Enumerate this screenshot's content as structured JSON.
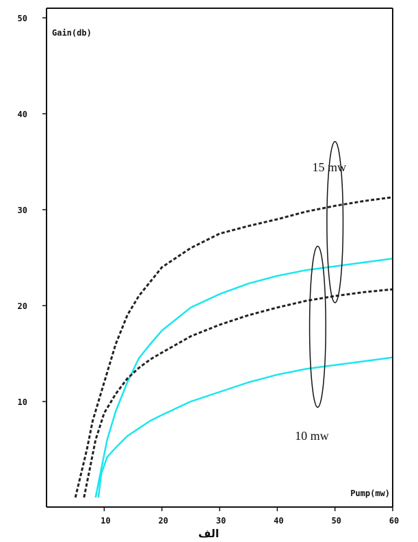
{
  "chart_data": {
    "type": "line",
    "ylabel": "Gain(db)",
    "xlabel": "Pump(mw)",
    "caption": "الف",
    "xlim": [
      0,
      60
    ],
    "ylim": [
      -1,
      51
    ],
    "x_ticks": [
      "10",
      "20",
      "30",
      "40",
      "50",
      "60"
    ],
    "y_ticks": [
      "10",
      "20",
      "30",
      "40",
      "50"
    ],
    "grid": false,
    "series": [
      {
        "style": "dashed",
        "color": "#222222",
        "points": [
          [
            5,
            0
          ],
          [
            7,
            5
          ],
          [
            8,
            8
          ],
          [
            10,
            12
          ],
          [
            12,
            16
          ],
          [
            14,
            19
          ],
          [
            16,
            21
          ],
          [
            18,
            22.5
          ],
          [
            20,
            24
          ],
          [
            25,
            26
          ],
          [
            30,
            27.5
          ],
          [
            35,
            28.3
          ],
          [
            40,
            29
          ],
          [
            45,
            29.8
          ],
          [
            50,
            30.4
          ],
          [
            55,
            30.9
          ],
          [
            60,
            31.3
          ]
        ]
      },
      {
        "style": "solid",
        "color": "#19e6ee",
        "points": [
          [
            8.5,
            0
          ],
          [
            9.5,
            3
          ],
          [
            10.5,
            6
          ],
          [
            12,
            9
          ],
          [
            14,
            12
          ],
          [
            16,
            14.5
          ],
          [
            18,
            16
          ],
          [
            20,
            17.4
          ],
          [
            25,
            19.8
          ],
          [
            30,
            21.2
          ],
          [
            35,
            22.3
          ],
          [
            40,
            23.1
          ],
          [
            45,
            23.7
          ],
          [
            50,
            24.1
          ],
          [
            55,
            24.5
          ],
          [
            60,
            24.9
          ]
        ]
      },
      {
        "style": "dashed",
        "color": "#222222",
        "points": [
          [
            6.5,
            0
          ],
          [
            7.5,
            3
          ],
          [
            8.5,
            6
          ],
          [
            10,
            8.8
          ],
          [
            12,
            10.8
          ],
          [
            14,
            12.4
          ],
          [
            16,
            13.5
          ],
          [
            18,
            14.4
          ],
          [
            20,
            15.1
          ],
          [
            25,
            16.8
          ],
          [
            30,
            18
          ],
          [
            35,
            19
          ],
          [
            40,
            19.8
          ],
          [
            45,
            20.5
          ],
          [
            50,
            21
          ],
          [
            55,
            21.4
          ],
          [
            60,
            21.7
          ]
        ]
      },
      {
        "style": "solid",
        "color": "#19e6ee",
        "points": [
          [
            9,
            0
          ],
          [
            9.5,
            2.5
          ],
          [
            10.5,
            4.2
          ],
          [
            12,
            5.2
          ],
          [
            14,
            6.4
          ],
          [
            16,
            7.2
          ],
          [
            18,
            8
          ],
          [
            20,
            8.6
          ],
          [
            25,
            10
          ],
          [
            30,
            11
          ],
          [
            35,
            12
          ],
          [
            40,
            12.8
          ],
          [
            45,
            13.4
          ],
          [
            50,
            13.8
          ],
          [
            55,
            14.2
          ],
          [
            60,
            14.6
          ]
        ]
      }
    ],
    "annotations": [
      {
        "text": "15 mw",
        "x": 49,
        "y": 34
      },
      {
        "text": "10 mw",
        "x": 46,
        "y": 6
      }
    ],
    "ellipses": [
      {
        "x": 50,
        "y": 28.7,
        "rx": 1.4,
        "ry": 8.4
      },
      {
        "x": 47,
        "y": 17.8,
        "rx": 1.4,
        "ry": 8.4
      }
    ]
  }
}
